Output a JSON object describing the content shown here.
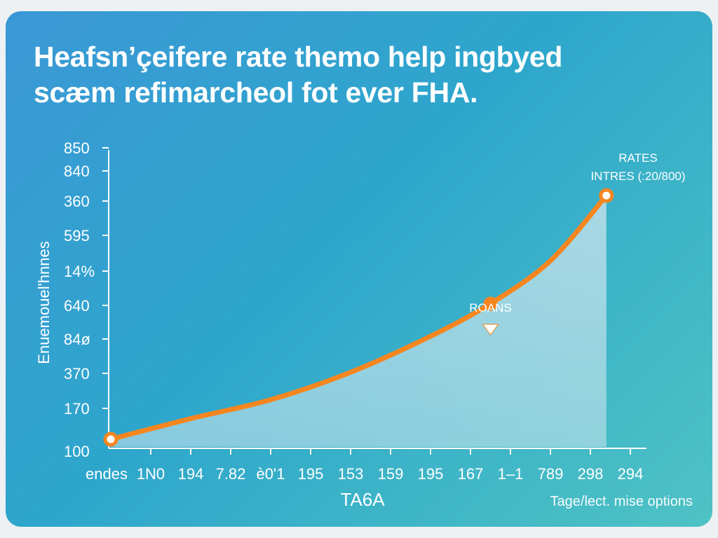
{
  "title_lines": [
    "Heafѕn’çeifere rate themo help ingbyed",
    "scæm refimarcheol fot ever FHA."
  ],
  "footer_note": "Tage/lect. mise options",
  "chart_data": {
    "type": "area",
    "title": "Heafѕn’çeifere rate themo help ingbyed scæm refimarcheol fot ever FHA.",
    "xlabel": "TA6A",
    "ylabel": "Enuemouel'hnnes",
    "x_tick_labels": [
      "endes",
      "1N0",
      "194",
      "7.82",
      "è0'1",
      "195",
      "153",
      "159",
      "195",
      "167",
      "1–1",
      "789",
      "298",
      "294"
    ],
    "y_tick_labels": [
      "100",
      "170",
      "370",
      "84ø",
      "640",
      "14%",
      "595",
      "360",
      "840",
      "850"
    ],
    "grid": false,
    "series": [
      {
        "color": "#f5861f",
        "points": [
          {
            "x_index": 0,
            "y": 0.0
          },
          {
            "x_index": 2,
            "y": 0.6
          },
          {
            "x_index": 4,
            "y": 1.15
          },
          {
            "x_index": 6,
            "y": 1.95
          },
          {
            "x_index": 8,
            "y": 3.0
          },
          {
            "x_index": 9.5,
            "y": 3.95
          },
          {
            "x_index": 11,
            "y": 5.2
          },
          {
            "x_index": 12.4,
            "y": 7.1
          }
        ]
      }
    ],
    "annotations": [
      {
        "text": "ROANS",
        "x_index": 9.5,
        "y": 3.95
      },
      {
        "text": "RATES",
        "x_index": 12.4,
        "y": 7.1
      },
      {
        "text": "INTRES (:20/800)",
        "x_index": 12.4,
        "y": 7.1
      }
    ],
    "colors": {
      "line": "#f5861f",
      "area": "#cfe6ee",
      "marker_fill": "#ffffff"
    }
  }
}
